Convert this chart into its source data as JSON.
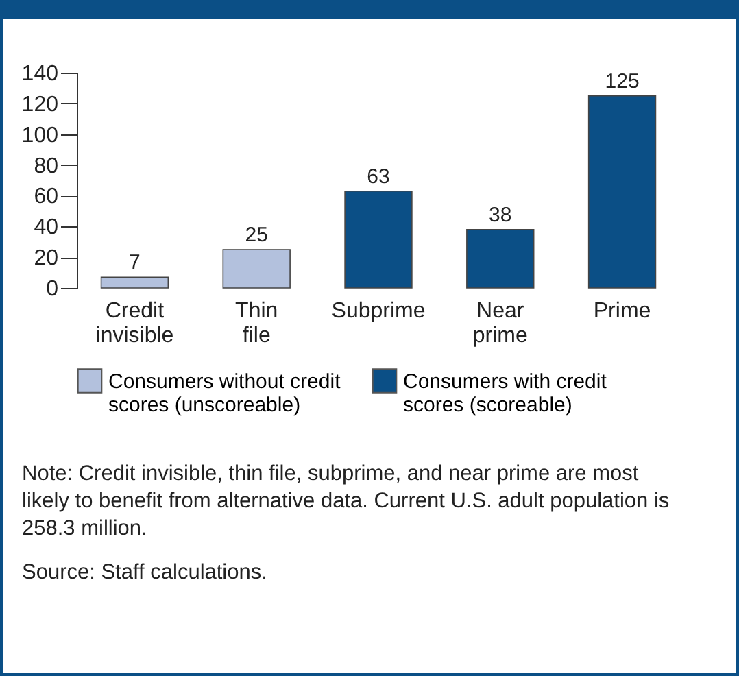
{
  "chart_data": {
    "type": "bar",
    "categories": [
      "Credit invisible",
      "Thin file",
      "Subprime",
      "Near prime",
      "Prime"
    ],
    "series": [
      {
        "name": "Consumers without credit scores (unscoreable)",
        "color": "#b3c1dd",
        "values": [
          7,
          25,
          null,
          null,
          null
        ]
      },
      {
        "name": "Consumers with credit scores (scoreable)",
        "color": "#0b4f86",
        "values": [
          null,
          null,
          63,
          38,
          125
        ]
      }
    ],
    "data_labels": true,
    "ylim": [
      0,
      140
    ],
    "yticks": [
      0,
      20,
      40,
      60,
      80,
      100,
      120,
      140
    ],
    "grid": false,
    "legend": "bottom",
    "annotations": [
      "Note: Credit invisible, thin file, subprime, and near prime are most likely to benefit from alternative data. Current U.S. adult population is 258.3 million.",
      "Source: Staff calculations."
    ]
  }
}
